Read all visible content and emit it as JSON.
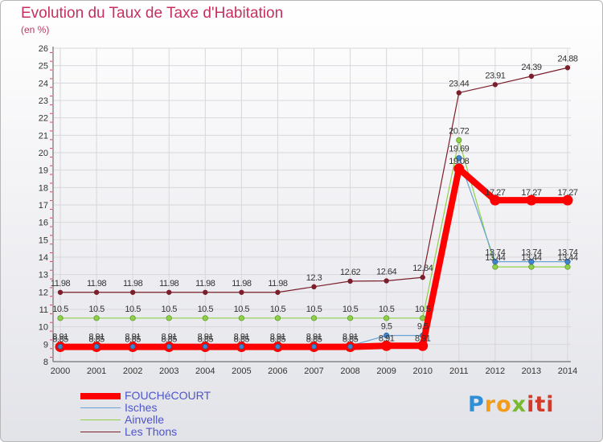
{
  "title": "Evolution du Taux de Taxe d'Habitation",
  "subtitle": "(en %)",
  "logo": {
    "p": "P",
    "ro": "ro",
    "x": "x",
    "iti": "iti"
  },
  "colors": {
    "title": "#c6305f",
    "legend_text": "#4d55c8"
  },
  "chart_data": {
    "type": "line",
    "title": "Evolution du Taux de Taxe d'Habitation",
    "ylabel": "(en %)",
    "xlabel": "",
    "x": [
      2000,
      2001,
      2002,
      2003,
      2004,
      2005,
      2006,
      2007,
      2008,
      2009,
      2010,
      2011,
      2012,
      2013,
      2014
    ],
    "ylim": [
      8,
      26
    ],
    "yticks": [
      8,
      9,
      10,
      11,
      12,
      13,
      14,
      15,
      16,
      17,
      18,
      19,
      20,
      21,
      22,
      23,
      24,
      25,
      26
    ],
    "legend_position": "bottom-left",
    "series": [
      {
        "name": "Les Thons",
        "color": "#7a1f2b",
        "values": [
          11.98,
          11.98,
          11.98,
          11.98,
          11.98,
          11.98,
          11.98,
          12.3,
          12.62,
          12.64,
          12.84,
          23.44,
          23.91,
          24.39,
          24.88
        ],
        "labels": [
          "11.98",
          "11.98",
          "11.98",
          "11.98",
          "11.98",
          "11.98",
          "11.98",
          "12.3",
          "12.62",
          "12.64",
          "12.84",
          "23.44",
          "23.91",
          "24.39",
          "24.88"
        ]
      },
      {
        "name": "Ainvelle",
        "color": "#8fd04a",
        "values": [
          10.5,
          10.5,
          10.5,
          10.5,
          10.5,
          10.5,
          10.5,
          10.5,
          10.5,
          10.5,
          10.5,
          20.72,
          13.44,
          13.44,
          13.44
        ],
        "labels": [
          "10.5",
          "10.5",
          "10.5",
          "10.5",
          "10.5",
          "10.5",
          "10.5",
          "10.5",
          "10.5",
          "10.5",
          "10.5",
          "20.72",
          "13.44",
          "13.44",
          "13.44"
        ]
      },
      {
        "name": "Isches",
        "color": "#6aa3d6",
        "values": [
          8.91,
          8.91,
          8.91,
          8.91,
          8.91,
          8.91,
          8.91,
          8.91,
          8.91,
          9.5,
          9.5,
          19.69,
          13.74,
          13.74,
          13.74
        ],
        "labels": [
          "8.91",
          "8.91",
          "8.91",
          "8.91",
          "8.91",
          "8.91",
          "8.91",
          "8.91",
          "8.91",
          "9.5",
          "9.5",
          "19.69",
          "13.74",
          "13.74",
          "13.74"
        ]
      },
      {
        "name": "FOUCHéCOURT",
        "color": "#ff0000",
        "values": [
          8.85,
          8.85,
          8.85,
          8.85,
          8.85,
          8.85,
          8.85,
          8.85,
          8.85,
          8.91,
          8.91,
          19.08,
          17.27,
          17.27,
          17.27
        ],
        "labels": [
          "8.85",
          "8.85",
          "8.85",
          "8.85",
          "8.85",
          "8.85",
          "8.85",
          "8.85",
          "8.85",
          "8.91",
          "8.91",
          "19.08",
          "17.27",
          "17.27",
          "17.27"
        ]
      }
    ],
    "legend_order": [
      "FOUCHéCOURT",
      "Isches",
      "Ainvelle",
      "Les Thons"
    ]
  }
}
